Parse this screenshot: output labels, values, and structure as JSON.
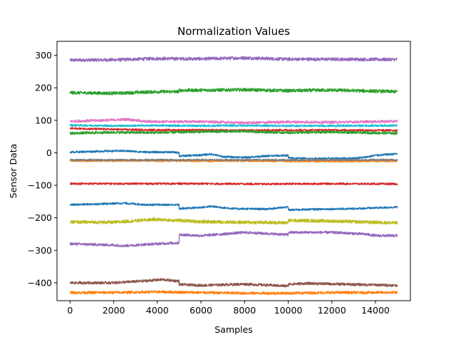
{
  "chart_data": {
    "type": "line",
    "title": "Normalization Values",
    "xlabel": "Samples",
    "ylabel": "Sensor Data",
    "xlim": [
      -600,
      15600
    ],
    "ylim": [
      -455,
      343
    ],
    "xticks": [
      0,
      2000,
      4000,
      6000,
      8000,
      10000,
      12000,
      14000
    ],
    "yticks": [
      -400,
      -300,
      -200,
      -100,
      0,
      100,
      200,
      300
    ],
    "xtick_labels": [
      "0",
      "2000",
      "4000",
      "6000",
      "8000",
      "10000",
      "12000",
      "14000"
    ],
    "ytick_labels": [
      "−400",
      "−300",
      "−200",
      "−100",
      "0",
      "100",
      "200",
      "300"
    ],
    "grid": false,
    "legend": false,
    "series": [
      {
        "color": "#9467bd",
        "noise": 5,
        "x": [
          0,
          2000,
          4000,
          6000,
          8000,
          10000,
          12000,
          15000
        ],
        "y": [
          285,
          286,
          290,
          289,
          292,
          288,
          288,
          287
        ]
      },
      {
        "color": "#2ca02c",
        "noise": 5,
        "x": [
          0,
          2000,
          4000,
          4999,
          5000,
          8000,
          10000,
          12000,
          15000
        ],
        "y": [
          185,
          183,
          188,
          188,
          192,
          194,
          191,
          193,
          188
        ]
      },
      {
        "color": "#e377c2",
        "noise": 4,
        "x": [
          0,
          2000,
          2600,
          3500,
          6000,
          8000,
          10000,
          12000,
          15000
        ],
        "y": [
          97,
          101,
          103,
          96,
          96,
          92,
          95,
          94,
          97
        ]
      },
      {
        "color": "#17becf",
        "noise": 3,
        "x": [
          0,
          2000,
          4000,
          6000,
          8000,
          10000,
          12000,
          15000
        ],
        "y": [
          85,
          83,
          84,
          83,
          84,
          83,
          83,
          84
        ]
      },
      {
        "color": "#d62728",
        "noise": 3,
        "x": [
          0,
          2000,
          4000,
          6000,
          8000,
          10000,
          12000,
          15000
        ],
        "y": [
          75,
          72,
          70,
          70,
          69,
          70,
          70,
          69
        ]
      },
      {
        "color": "#2ca02c",
        "noise": 4,
        "x": [
          0,
          2000,
          4000,
          6000,
          8000,
          10000,
          12000,
          15000
        ],
        "y": [
          60,
          63,
          62,
          65,
          66,
          62,
          64,
          60
        ]
      },
      {
        "color": "#1f77b4",
        "noise": 3,
        "x": [
          0,
          1500,
          2500,
          3500,
          4500,
          4999,
          5000,
          6000,
          6500,
          7000,
          8000,
          9000,
          9999,
          10000,
          11000,
          13000,
          13500,
          14000,
          15000
        ],
        "y": [
          2,
          5,
          6,
          2,
          2,
          1,
          -10,
          -7,
          -4,
          -12,
          -14,
          -10,
          -8,
          -16,
          -18,
          -17,
          -14,
          -8,
          -3
        ]
      },
      {
        "color": "#ff7f0e",
        "noise": 3,
        "x": [
          0,
          3000,
          6000,
          9000,
          12000,
          15000
        ],
        "y": [
          -25,
          -24,
          -25,
          -25,
          -26,
          -25
        ]
      },
      {
        "color": "#7f7f7f",
        "noise": 3,
        "x": [
          0,
          3000,
          6000,
          9000,
          12000,
          15000
        ],
        "y": [
          -22,
          -22,
          -22,
          -22,
          -22,
          -22
        ]
      },
      {
        "color": "#d62728",
        "noise": 3,
        "x": [
          0,
          3000,
          6000,
          9000,
          12000,
          15000
        ],
        "y": [
          -95,
          -95,
          -95,
          -96,
          -95,
          -96
        ]
      },
      {
        "color": "#1f77b4",
        "noise": 3,
        "x": [
          0,
          1500,
          2500,
          3500,
          4999,
          5000,
          6000,
          6500,
          7500,
          9000,
          9999,
          10000,
          11000,
          13000,
          15000
        ],
        "y": [
          -160,
          -157,
          -155,
          -160,
          -160,
          -172,
          -168,
          -165,
          -172,
          -173,
          -167,
          -176,
          -174,
          -172,
          -167
        ]
      },
      {
        "color": "#bcbd22",
        "noise": 5,
        "x": [
          0,
          2000,
          3800,
          5000,
          6000,
          8000,
          9999,
          10000,
          12000,
          15000
        ],
        "y": [
          -213,
          -214,
          -205,
          -208,
          -212,
          -214,
          -215,
          -208,
          -210,
          -216
        ]
      },
      {
        "color": "#9467bd",
        "noise": 4,
        "x": [
          0,
          2000,
          2500,
          4000,
          4999,
          5000,
          6000,
          8000,
          9999,
          10000,
          12000,
          13500,
          14000,
          15000
        ],
        "y": [
          -280,
          -284,
          -286,
          -280,
          -277,
          -252,
          -255,
          -245,
          -252,
          -245,
          -245,
          -250,
          -255,
          -255
        ]
      },
      {
        "color": "#8c564b",
        "noise": 4,
        "x": [
          0,
          2000,
          3500,
          4200,
          4999,
          5000,
          6000,
          8000,
          9999,
          10000,
          11000,
          13000,
          15000
        ],
        "y": [
          -400,
          -400,
          -394,
          -390,
          -395,
          -405,
          -408,
          -404,
          -410,
          -404,
          -402,
          -405,
          -408
        ]
      },
      {
        "color": "#ff7f0e",
        "noise": 4,
        "x": [
          0,
          2000,
          4000,
          6000,
          8000,
          10000,
          12000,
          15000
        ],
        "y": [
          -430,
          -430,
          -428,
          -430,
          -432,
          -432,
          -430,
          -430
        ]
      }
    ]
  }
}
